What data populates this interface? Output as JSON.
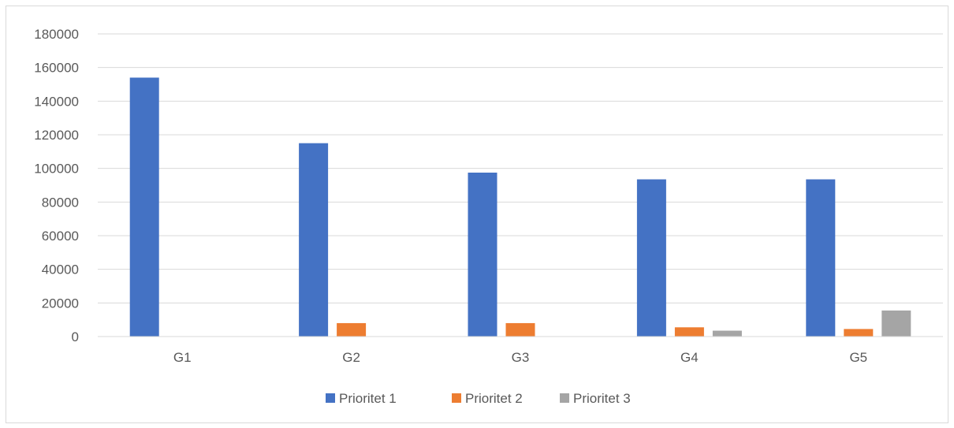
{
  "chart_data": {
    "type": "bar",
    "title": "",
    "xlabel": "",
    "ylabel": "",
    "categories": [
      "G1",
      "G2",
      "G3",
      "G4",
      "G5"
    ],
    "series": [
      {
        "name": "Prioritet 1",
        "color": "#4472C4",
        "values": [
          154000,
          115000,
          97500,
          93500,
          93500
        ]
      },
      {
        "name": "Prioritet 2",
        "color": "#ED7D31",
        "values": [
          0,
          8000,
          8000,
          5500,
          4500
        ]
      },
      {
        "name": "Prioritet 3",
        "color": "#A5A5A5",
        "values": [
          0,
          0,
          0,
          3500,
          15500
        ]
      }
    ],
    "ylim": [
      0,
      180000
    ],
    "yticks": [
      "0",
      "20000",
      "40000",
      "60000",
      "80000",
      "100000",
      "120000",
      "140000",
      "160000",
      "180000"
    ],
    "grid": true,
    "legend_position": "bottom"
  }
}
